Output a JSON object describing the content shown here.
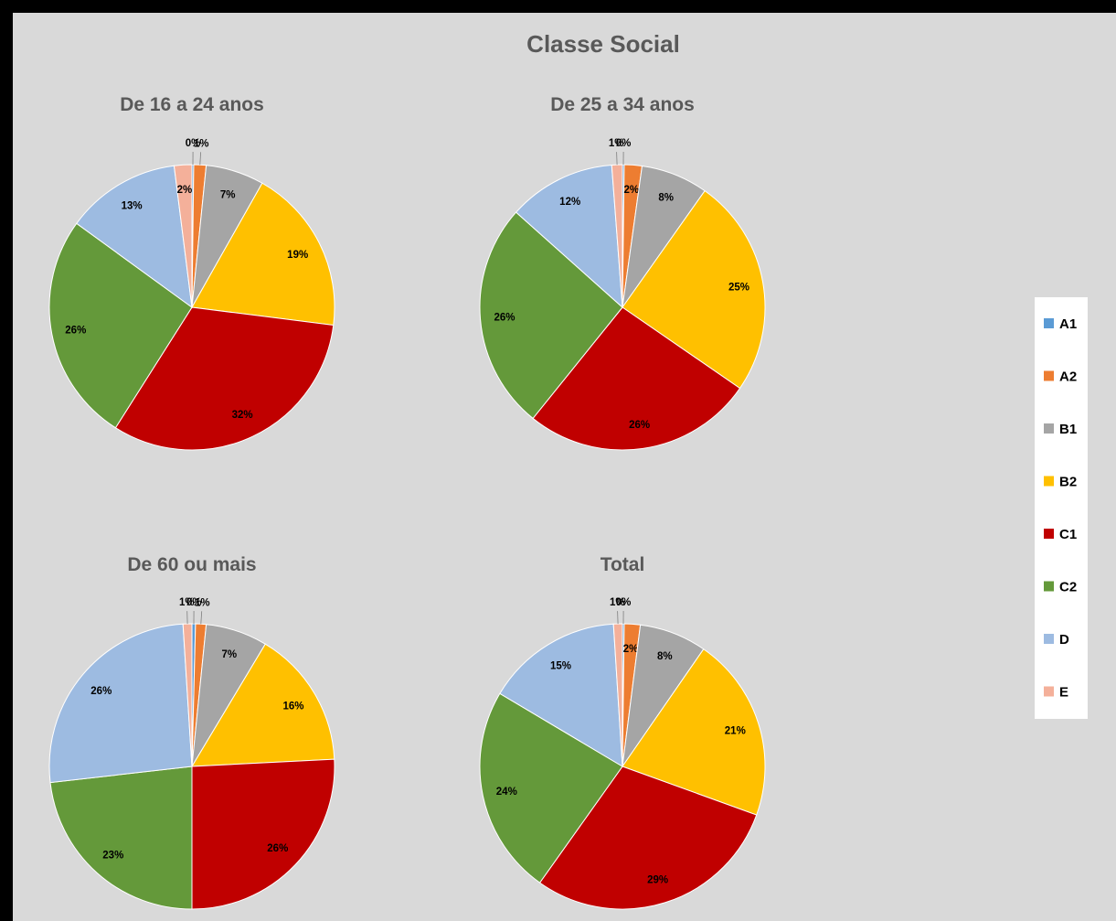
{
  "title": "Classe Social",
  "colors": {
    "A1": "#5b9bd5",
    "A2": "#ed7d31",
    "B1": "#a5a5a5",
    "B2": "#ffc000",
    "C1": "#c00000",
    "C2": "#64993a",
    "D": "#9dbbe1",
    "E": "#f4b09a"
  },
  "chart_data": [
    {
      "type": "pie",
      "title": "De 16 a 24 anos",
      "categories": [
        "A1",
        "A2",
        "B1",
        "B2",
        "C1",
        "C2",
        "D",
        "E"
      ],
      "values": [
        0.2,
        1.4,
        6.6,
        18.8,
        32.0,
        26.0,
        13.0,
        2.0
      ],
      "labels": [
        "0%",
        "1%",
        "7%",
        "19%",
        "32%",
        "26%",
        "13%",
        "2%"
      ]
    },
    {
      "type": "pie",
      "title": "De 25 a 34 anos",
      "categories": [
        "A1",
        "A2",
        "B1",
        "B2",
        "C1",
        "C2",
        "D",
        "E"
      ],
      "values": [
        0.2,
        2.0,
        7.6,
        24.8,
        26.2,
        25.8,
        12.2,
        1.2
      ],
      "labels": [
        "0%",
        "2%",
        "8%",
        "25%",
        "26%",
        "26%",
        "12%",
        "1%"
      ]
    },
    {
      "type": "pie",
      "title": "De 60 ou mais",
      "categories": [
        "A1",
        "A2",
        "B1",
        "B2",
        "C1",
        "C2",
        "D",
        "E"
      ],
      "values": [
        0.4,
        1.2,
        7.0,
        15.6,
        25.8,
        23.2,
        25.8,
        1.0
      ],
      "labels": [
        "0%",
        "1%",
        "7%",
        "16%",
        "26%",
        "23%",
        "26%",
        "1%"
      ]
    },
    {
      "type": "pie",
      "title": "Total",
      "categories": [
        "A1",
        "A2",
        "B1",
        "B2",
        "C1",
        "C2",
        "D",
        "E"
      ],
      "values": [
        0.2,
        1.8,
        7.6,
        20.8,
        29.2,
        23.6,
        15.4,
        1.0
      ],
      "labels": [
        "0%",
        "2%",
        "8%",
        "21%",
        "29%",
        "24%",
        "15%",
        "1%"
      ]
    }
  ],
  "legend": {
    "placement": "right",
    "items": [
      "A1",
      "A2",
      "B1",
      "B2",
      "C1",
      "C2",
      "D",
      "E"
    ]
  }
}
